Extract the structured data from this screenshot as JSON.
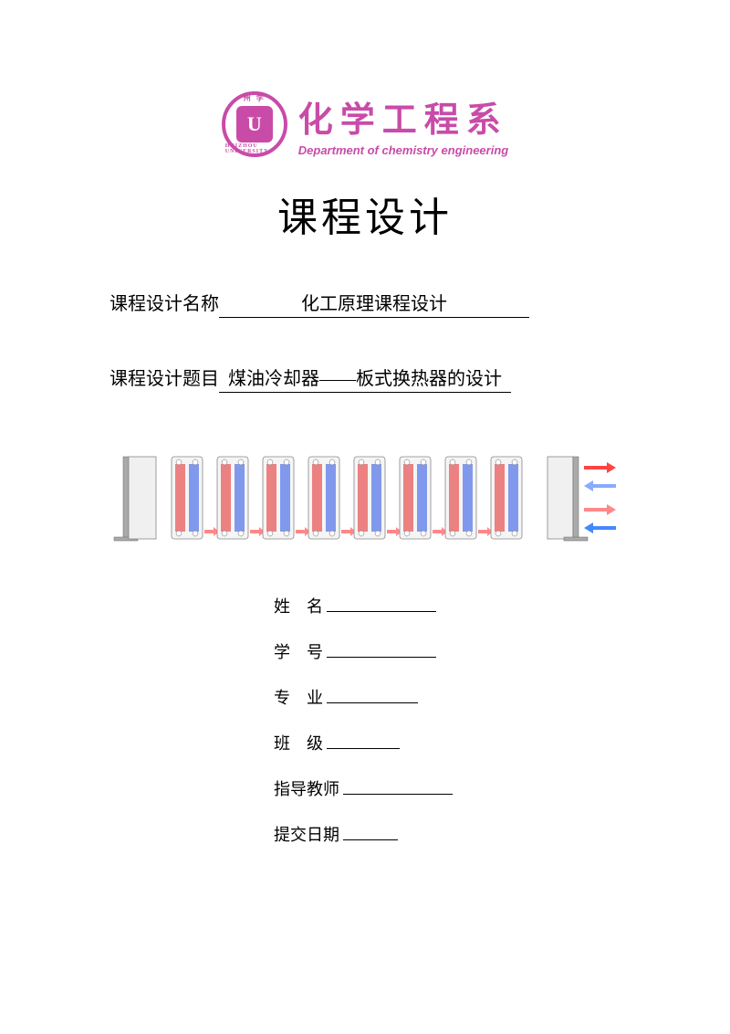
{
  "logo": {
    "university_top": "州 学",
    "university_bottom": "HUIZHOU UNIVERSITY",
    "icon_text": "U",
    "circle_color": "#c94ba8",
    "inner_color": "#c94ba8"
  },
  "department": {
    "name_cn": "化学工程系",
    "name_en": "Department of chemistry engineering",
    "color": "#c94ba8"
  },
  "title": "课程设计",
  "course_name": {
    "label": "课程设计名称",
    "value": "化工原理课程设计"
  },
  "course_topic": {
    "label": "课程设计题目",
    "value": "煤油冷却器——板式换热器的设计"
  },
  "diagram": {
    "type": "infographic",
    "description": "plate-heat-exchanger",
    "plate_count": 8,
    "frame_color": "#888888",
    "hot_color": "#e85a5a",
    "cold_color": "#5a7ae8",
    "arrow_in_hot": "#ff4444",
    "arrow_in_cold": "#4488ff",
    "arrow_out_hot": "#ff8888",
    "arrow_out_cold": "#88aaff",
    "background": "#ffffff"
  },
  "form_fields": [
    {
      "label": "姓    名",
      "blank_width": 120
    },
    {
      "label": "学    号",
      "blank_width": 120
    },
    {
      "label": "专    业",
      "blank_width": 100
    },
    {
      "label": "班    级",
      "blank_width": 80
    },
    {
      "label": "指导教师",
      "blank_width": 120
    },
    {
      "label": "提交日期",
      "blank_width": 60
    }
  ]
}
